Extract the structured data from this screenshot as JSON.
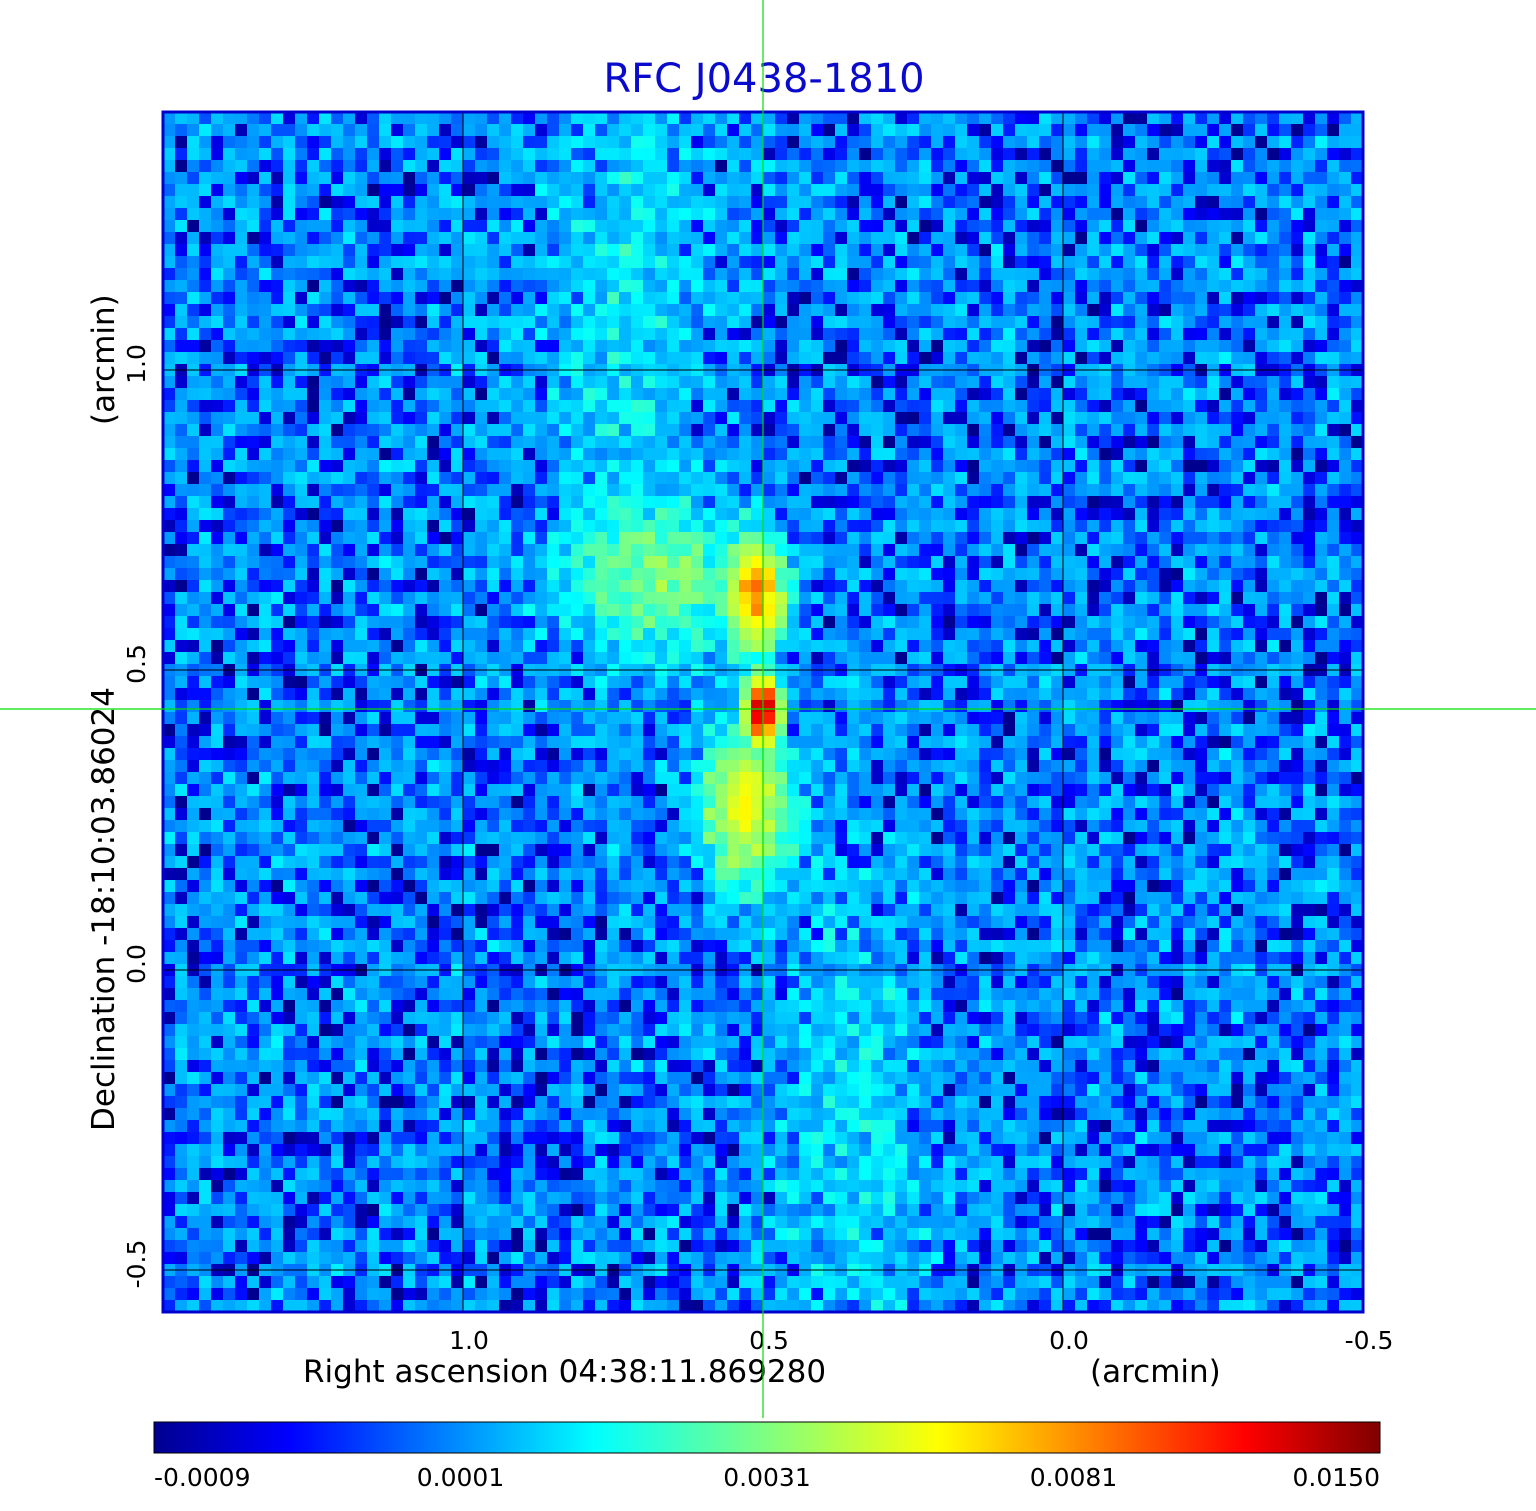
{
  "chart_data": {
    "type": "heatmap",
    "title": "RFC J0438-1810",
    "xlabel": "Right ascension  04:38:11.869280",
    "xunit": "(arcmin)",
    "ylabel": "Declination  -18:10:03.86024",
    "yunit": "(arcmin)",
    "xlim": [
      1.5,
      -0.5
    ],
    "ylim": [
      -0.57,
      1.43
    ],
    "x_ticks": [
      {
        "value": 1.0,
        "label": "1.0"
      },
      {
        "value": 0.5,
        "label": "0.5"
      },
      {
        "value": 0.0,
        "label": "0.0"
      },
      {
        "value": -0.5,
        "label": "-0.5"
      }
    ],
    "y_ticks": [
      {
        "value": 1.0,
        "label": "1.0"
      },
      {
        "value": 0.5,
        "label": "0.5"
      },
      {
        "value": 0.0,
        "label": "0.0"
      },
      {
        "value": -0.5,
        "label": "-0.5"
      }
    ],
    "grid": true,
    "crosshair": {
      "x": 0.5,
      "y": 0.435
    },
    "colorbar": {
      "ticks": [
        {
          "value": -0.0009,
          "label": "-0.0009"
        },
        {
          "value": 0.0001,
          "label": "0.0001"
        },
        {
          "value": 0.0031,
          "label": "0.0031"
        },
        {
          "value": 0.0081,
          "label": "0.0081"
        },
        {
          "value": 0.015,
          "label": "0.0150"
        }
      ],
      "colormap": "jet"
    },
    "background_level": 0.0001,
    "features": [
      {
        "name": "core",
        "x": 0.5,
        "y": 0.435,
        "peak": 0.015,
        "sx": 0.018,
        "sy": 0.03
      },
      {
        "name": "north-lobe",
        "x": 0.51,
        "y": 0.62,
        "peak": 0.0075,
        "sx": 0.03,
        "sy": 0.06
      },
      {
        "name": "north-lobe-halo",
        "x": 0.67,
        "y": 0.65,
        "peak": 0.0028,
        "sx": 0.1,
        "sy": 0.08
      },
      {
        "name": "south-lobe",
        "x": 0.53,
        "y": 0.27,
        "peak": 0.0055,
        "sx": 0.05,
        "sy": 0.08
      },
      {
        "name": "north-jet",
        "x": 0.73,
        "y": 1.1,
        "peak": 0.0012,
        "sx": 0.09,
        "sy": 0.3
      },
      {
        "name": "south-jet",
        "x": 0.35,
        "y": -0.25,
        "peak": 0.001,
        "sx": 0.09,
        "sy": 0.3
      }
    ]
  },
  "colors": {
    "title": "#0a0acc",
    "frame": "#0000cc",
    "grid": "#000000",
    "crosshair": "#00e000"
  }
}
